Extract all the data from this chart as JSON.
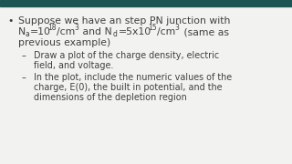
{
  "background_color": "#f2f2f0",
  "top_bar_color": "#1e5454",
  "text_color": "#404040",
  "font_family": "DejaVu Sans",
  "font_size_main": 7.8,
  "font_size_sub": 6.9,
  "font_size_script": 5.5,
  "bullet": "•",
  "dash": "–",
  "line1": "Suppose we have an step PN junction with",
  "line3": "previous example)",
  "sub1_l1": "Draw a plot of the charge density, electric",
  "sub1_l2": "field, and voltage.",
  "sub2_l1": "In the plot, include the numeric values of the",
  "sub2_l2": "charge, E(0), the built in potential, and the",
  "sub2_l3": "dimensions of the depletion region"
}
